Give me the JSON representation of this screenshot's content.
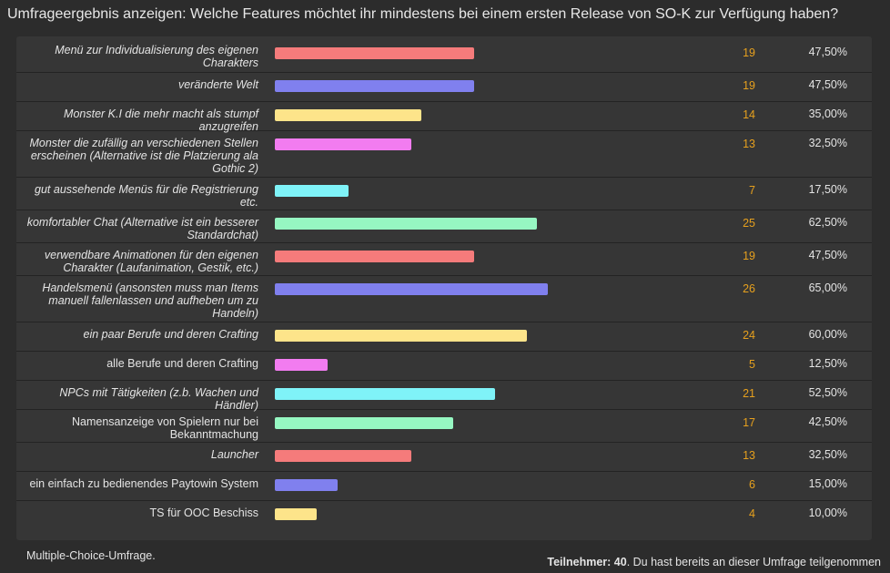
{
  "title": "Umfrageergebnis anzeigen: Welche Features möchtet ihr mindestens bei einem ersten Release von SO-K zur Verfügung haben?",
  "colors": [
    "#f57b7b",
    "#8080ee",
    "#fde48a",
    "#f27cf0",
    "#7ff3f8",
    "#96f7c2"
  ],
  "options": [
    {
      "label": "Menü zur Individualisierung des eigenen Charakters",
      "italic": true,
      "votes": "19",
      "percent": "47,50%",
      "value": 47.5
    },
    {
      "label": "veränderte Welt",
      "italic": true,
      "votes": "19",
      "percent": "47,50%",
      "value": 47.5
    },
    {
      "label": "Monster K.I die mehr macht als stumpf anzugreifen",
      "italic": true,
      "votes": "14",
      "percent": "35,00%",
      "value": 35.0
    },
    {
      "label": "Monster die zufällig an verschiedenen Stellen erscheinen (Alternative ist die Platzierung ala Gothic 2)",
      "italic": true,
      "votes": "13",
      "percent": "32,50%",
      "value": 32.5
    },
    {
      "label": "gut aussehende Menüs für die Registrierung etc.",
      "italic": true,
      "votes": "7",
      "percent": "17,50%",
      "value": 17.5
    },
    {
      "label": "komfortabler Chat (Alternative ist ein besserer Standardchat)",
      "italic": true,
      "votes": "25",
      "percent": "62,50%",
      "value": 62.5
    },
    {
      "label": "verwendbare Animationen für den eigenen Charakter (Laufanimation, Gestik, etc.)",
      "italic": true,
      "votes": "19",
      "percent": "47,50%",
      "value": 47.5
    },
    {
      "label": "Handelsmenü (ansonsten muss man Items manuell fallenlassen und aufheben um zu Handeln)",
      "italic": true,
      "votes": "26",
      "percent": "65,00%",
      "value": 65.0
    },
    {
      "label": "ein paar Berufe und deren Crafting",
      "italic": true,
      "votes": "24",
      "percent": "60,00%",
      "value": 60.0
    },
    {
      "label": "alle Berufe und deren Crafting",
      "italic": false,
      "votes": "5",
      "percent": "12,50%",
      "value": 12.5
    },
    {
      "label": "NPCs mit Tätigkeiten (z.b. Wachen und Händler)",
      "italic": true,
      "votes": "21",
      "percent": "52,50%",
      "value": 52.5
    },
    {
      "label": "Namensanzeige von Spielern nur bei Bekanntmachung",
      "italic": false,
      "votes": "17",
      "percent": "42,50%",
      "value": 42.5
    },
    {
      "label": "Launcher",
      "italic": true,
      "votes": "13",
      "percent": "32,50%",
      "value": 32.5
    },
    {
      "label": "ein einfach zu bedienendes Paytowin System",
      "italic": false,
      "votes": "6",
      "percent": "15,00%",
      "value": 15.0
    },
    {
      "label": "TS für OOC Beschiss",
      "italic": false,
      "votes": "4",
      "percent": "10,00%",
      "value": 10.0
    }
  ],
  "footer": {
    "poll_type": "Multiple-Choice-Umfrage.",
    "participants_label": "Teilnehmer:",
    "participants_count": "40",
    "participated_note": ". Du hast bereits an dieser Umfrage teilgenommen"
  }
}
